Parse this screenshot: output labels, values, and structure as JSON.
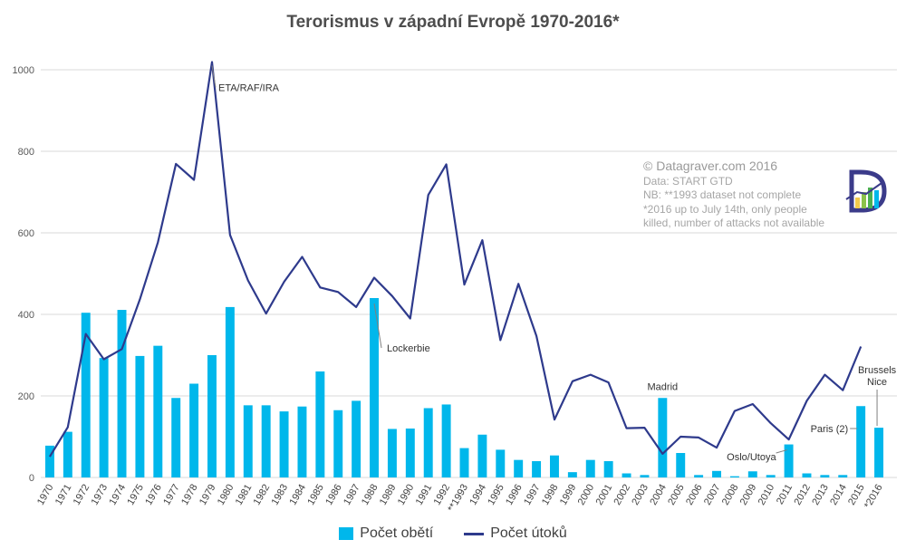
{
  "title": "Terorismus v západní Evropě 1970-2016*",
  "credit": {
    "line1": "© Datagraver.com 2016",
    "line2": "Data: START GTD",
    "line3": "NB: **1993 dataset not complete",
    "line4": "*2016 up to July 14th, only people",
    "line5": "killed, number of attacks not available"
  },
  "legend": {
    "bars_label": "Počet obětí",
    "line_label": "Počet útoků"
  },
  "colors": {
    "bars": "#00b7eb",
    "line": "#2e3a8c",
    "grid": "#d9d9d9",
    "annotation": "#333333"
  },
  "chart_data": {
    "type": "bar",
    "title": "Terorismus v západní Evropě 1970-2016*",
    "xlabel": "",
    "ylabel": "",
    "ylim": [
      0,
      1000
    ],
    "yticks": [
      0,
      200,
      400,
      600,
      800,
      1000
    ],
    "grid": true,
    "legend_position": "bottom",
    "categories": [
      "1970",
      "1971",
      "1972",
      "1973",
      "1974",
      "1975",
      "1976",
      "1977",
      "1978",
      "1979",
      "1980",
      "1981",
      "1982",
      "1983",
      "1984",
      "1985",
      "1986",
      "1987",
      "1988",
      "1989",
      "1990",
      "1991",
      "1992",
      "**1993",
      "1994",
      "1995",
      "1996",
      "1997",
      "1998",
      "1999",
      "2000",
      "2001",
      "2002",
      "2003",
      "2004",
      "2005",
      "2006",
      "2007",
      "2008",
      "2009",
      "2010",
      "2011",
      "2012",
      "2013",
      "2014",
      "2015",
      "*2016"
    ],
    "series": [
      {
        "name": "Počet obětí",
        "type": "bar",
        "values": [
          78,
          112,
          404,
          293,
          411,
          298,
          323,
          195,
          230,
          300,
          418,
          177,
          177,
          162,
          174,
          260,
          165,
          188,
          440,
          119,
          120,
          170,
          179,
          72,
          105,
          68,
          43,
          40,
          54,
          13,
          43,
          40,
          10,
          6,
          195,
          60,
          6,
          16,
          3,
          15,
          6,
          81,
          10,
          6,
          6,
          175,
          122
        ]
      },
      {
        "name": "Počet útoků",
        "type": "line",
        "values": [
          51,
          123,
          352,
          290,
          315,
          437,
          577,
          769,
          730,
          1019,
          595,
          483,
          402,
          480,
          541,
          466,
          455,
          418,
          490,
          445,
          390,
          693,
          768,
          473,
          582,
          337,
          475,
          347,
          142,
          236,
          252,
          233,
          121,
          122,
          58,
          100,
          98,
          73,
          163,
          180,
          133,
          93,
          188,
          252,
          214,
          321,
          null
        ]
      }
    ],
    "annotations": [
      {
        "text": "ETA/RAF/IRA",
        "category": "1979"
      },
      {
        "text": "Lockerbie",
        "category": "1988"
      },
      {
        "text": "Madrid",
        "category": "2004"
      },
      {
        "text": "Oslo/Utoya",
        "category": "2011"
      },
      {
        "text": "Paris (2)",
        "category": "2015"
      },
      {
        "text": "Brussels",
        "category": "*2016"
      },
      {
        "text": "Nice",
        "category": "*2016"
      }
    ]
  }
}
